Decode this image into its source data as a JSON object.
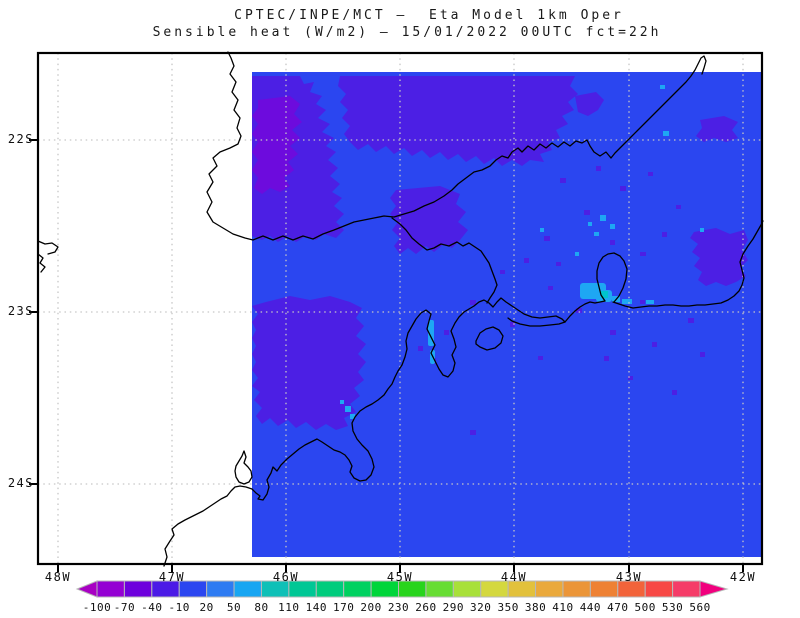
{
  "header": {
    "line1": "CPTEC/INPE/MCT –  Eta Model 1km Oper",
    "line2": "Sensible heat (W/m2) – 15/01/2022 00UTC fct=22h"
  },
  "map": {
    "lat_labels": [
      "22S",
      "23S",
      "24S"
    ],
    "lon_labels": [
      "48W",
      "47W",
      "46W",
      "45W",
      "44W",
      "43W",
      "42W"
    ],
    "fills": {
      "domain": "#2b46f0",
      "violet": "#4c1fe4",
      "violet_deep": "#6d0bdd",
      "cyan": "#1ea7f3",
      "teal": "#00c4cc",
      "gridline": "#c6c6c6",
      "coastline": "#000000"
    }
  },
  "colorbar": {
    "labels": [
      "-100",
      "-70",
      "-40",
      "-10",
      "20",
      "50",
      "80",
      "110",
      "140",
      "170",
      "200",
      "230",
      "260",
      "290",
      "320",
      "350",
      "380",
      "410",
      "440",
      "470",
      "500",
      "530",
      "560"
    ],
    "segment_colors": [
      "#9400d3",
      "#6d00dd",
      "#4b1ae6",
      "#2b46f0",
      "#2e7bf2",
      "#18a6f2",
      "#0fc0b7",
      "#00c795",
      "#00cc7d",
      "#00d160",
      "#00d53a",
      "#28d41c",
      "#67dd33",
      "#a8e039",
      "#d4d83f",
      "#e2c13c",
      "#eaa93c",
      "#eb9538",
      "#ee8134",
      "#f2633a",
      "#f74845",
      "#f53c68"
    ],
    "left_arrow_color": "#a800c3",
    "right_arrow_color": "#f1007e",
    "border_color": "#b8b8b8"
  },
  "chart_data": {
    "type": "heatmap",
    "source": "CPTEC/INPE/MCT",
    "model": "Eta Model 1km Oper",
    "variable": "Sensible heat (W/m2)",
    "valid": "15/01/2022 00UTC fct=22h",
    "scale_values": [
      -100,
      -70,
      -40,
      -10,
      20,
      50,
      80,
      110,
      140,
      170,
      200,
      230,
      260,
      290,
      320,
      350,
      380,
      410,
      440,
      470,
      500,
      530,
      560
    ],
    "lat_tick_labels": [
      "22S",
      "23S",
      "24S"
    ],
    "lon_tick_labels": [
      "48W",
      "47W",
      "46W",
      "45W",
      "44W",
      "43W",
      "42W"
    ],
    "legend_position": "bottom"
  }
}
